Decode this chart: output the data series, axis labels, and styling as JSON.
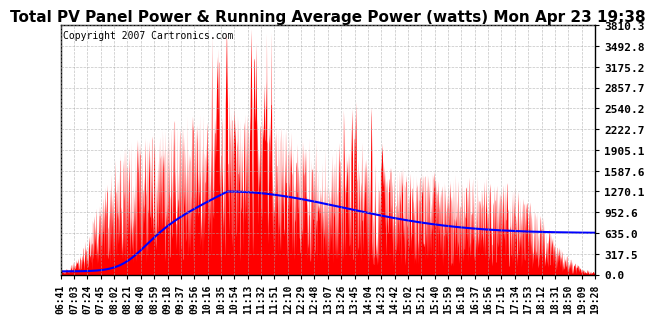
{
  "title": "Total PV Panel Power & Running Average Power (watts) Mon Apr 23 19:38",
  "copyright_text": "Copyright 2007 Cartronics.com",
  "bg_color": "#ffffff",
  "plot_bg_color": "#ffffff",
  "grid_color": "#aaaaaa",
  "fill_color": "#ff0000",
  "line_color": "#0000ff",
  "ymin": 0.0,
  "ymax": 3810.3,
  "yticks": [
    0.0,
    317.5,
    635.0,
    952.6,
    1270.1,
    1587.6,
    1905.1,
    2222.7,
    2540.2,
    2857.7,
    3175.2,
    3492.8,
    3810.3
  ],
  "xtick_labels": [
    "06:41",
    "07:03",
    "07:24",
    "07:45",
    "08:02",
    "08:21",
    "08:40",
    "08:59",
    "09:18",
    "09:37",
    "09:56",
    "10:16",
    "10:35",
    "10:54",
    "11:13",
    "11:32",
    "11:51",
    "12:10",
    "12:29",
    "12:48",
    "13:07",
    "13:26",
    "13:45",
    "14:04",
    "14:23",
    "14:42",
    "15:02",
    "15:21",
    "15:40",
    "15:59",
    "16:18",
    "16:37",
    "16:56",
    "17:15",
    "17:34",
    "17:53",
    "18:12",
    "18:31",
    "18:50",
    "19:09",
    "19:28"
  ],
  "title_fontsize": 11,
  "copyright_fontsize": 7,
  "tick_fontsize": 7,
  "ytick_fontsize": 8
}
